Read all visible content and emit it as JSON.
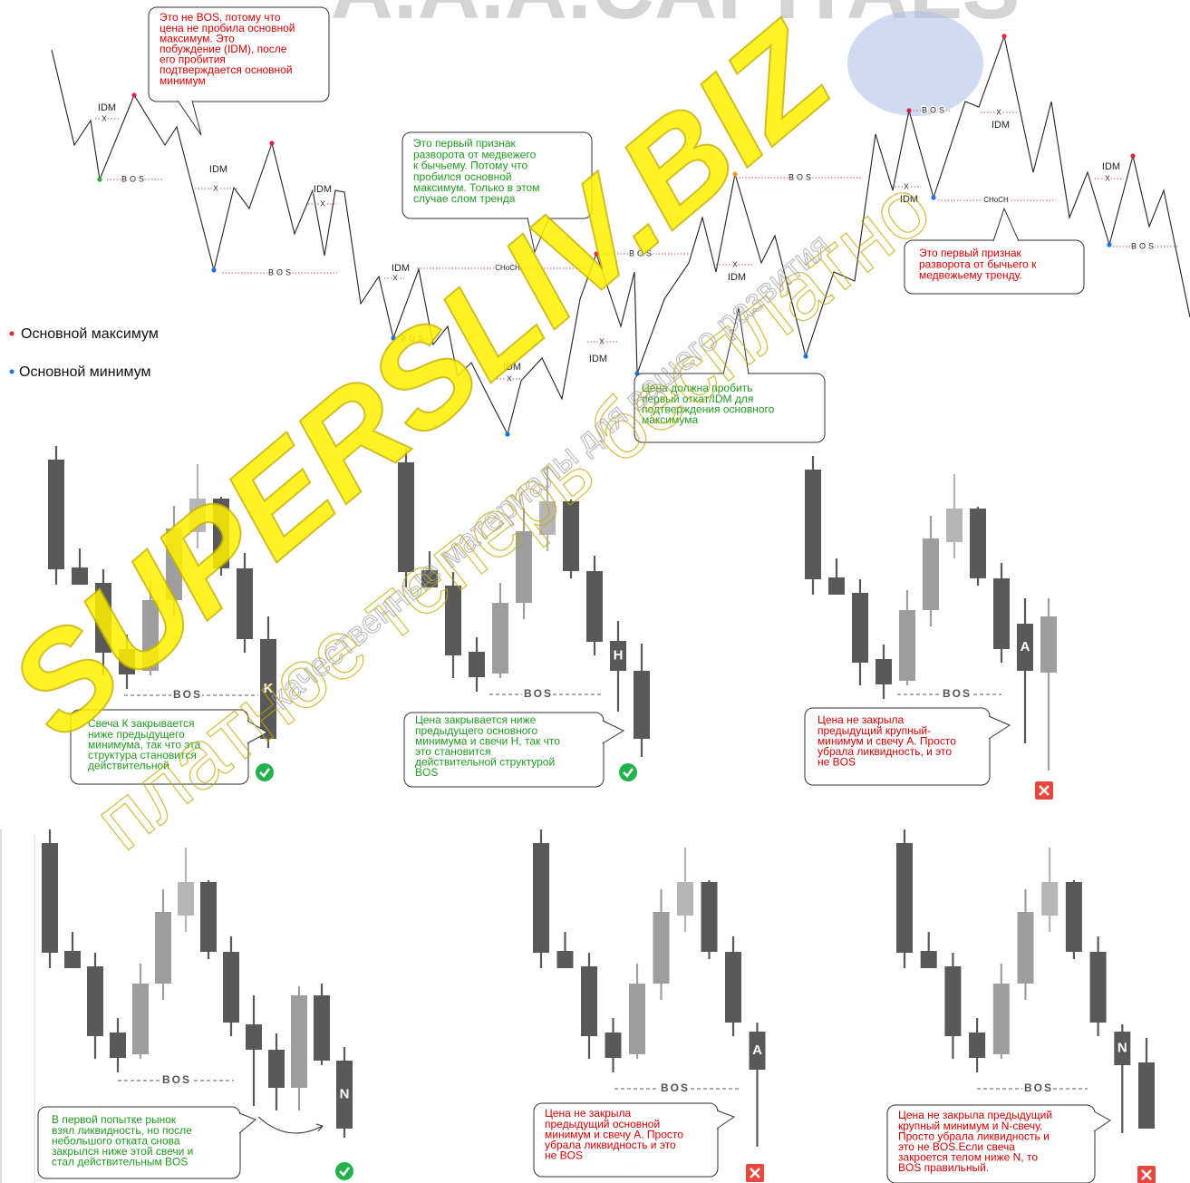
{
  "watermarks": {
    "brand": "A.A.A.CAPITALS",
    "site": "SUPERSLIV.BIZ",
    "slogan": "платное теперь бесплатно",
    "tagline": "качественные материалы для вашего развития"
  },
  "structure_map": {
    "labels": [
      "IDM",
      "X",
      "BOS",
      "IDM",
      "X",
      "IDM",
      "X",
      "BOS",
      "IDM",
      "X",
      "CHoCH",
      "BOS",
      "IDM",
      "X",
      "BOS",
      "X",
      "IDM",
      "BOS",
      "X",
      "IDM",
      "BOS",
      "X",
      "IDM",
      "X",
      "IDM",
      "CHoCH",
      "IDM",
      "X",
      "BOS"
    ],
    "callouts": [
      {
        "lines": [
          "Это не BOS, потому что",
          "цена не пробила основной",
          "максимум. Это",
          "побуждение (IDM), после",
          "его пробития",
          "подтверждается основной",
          "минимум"
        ]
      },
      {
        "lines": [
          "Это первый признак",
          "разворота от медвежего",
          "к бычьему. Потому что",
          "пробился основной",
          "максимум. Только в этом",
          "случае слом тренда"
        ]
      },
      {
        "lines": [
          "Цена должна пробить",
          "первый откат/IDM для",
          "подтверждения основного",
          "максимума"
        ]
      },
      {
        "lines": [
          "Это первый признак",
          "разворота от бычьего к",
          "медвежьему тренду."
        ]
      }
    ]
  },
  "legend": {
    "high": "Основной максимум",
    "low": "Основной минимум"
  },
  "examples": [
    {
      "level_label": "BOS",
      "candle_label": "K",
      "note": [
        "Свеча К закрывается",
        "ниже предыдущего",
        "минимума, так что эта",
        "структура становится",
        "действительной"
      ]
    },
    {
      "level_label": "BOS",
      "candle_label": "H",
      "note": [
        "Цена закрывается ниже",
        "предыдущего основного",
        "минимума и свечи Н, так что",
        "это становится",
        "действительной структурой",
        "BOS"
      ]
    },
    {
      "level_label": "BOS",
      "candle_label": "A",
      "note": [
        "Цена не закрыла",
        "предыдущий крупный-",
        "минимум и свечу А. Просто",
        "убрала ликвидность, и это",
        "не BOS"
      ]
    },
    {
      "level_label": "BOS",
      "candle_label": "N",
      "note": [
        "В первой попытке рынок",
        "взял ликвидность, но после",
        "небольшого отката снова",
        "закрылся ниже этой свечи и",
        "стал действительным BOS"
      ]
    },
    {
      "level_label": "BOS",
      "candle_label": "A",
      "note": [
        "Цена не закрыла",
        "предыдущий основной",
        "минимум и свечу А. Просто",
        "убрала ликвидность и это",
        "не BOS"
      ]
    },
    {
      "level_label": "BOS",
      "candle_label": "N",
      "note": [
        "Цена не закрыла предыдущий",
        "крупный минимум и N-свечу.",
        "Просто убрала ликвидность и",
        "это не BOS.Если свеча",
        "закроется телом ниже N, то",
        "BOS правильный."
      ]
    }
  ]
}
